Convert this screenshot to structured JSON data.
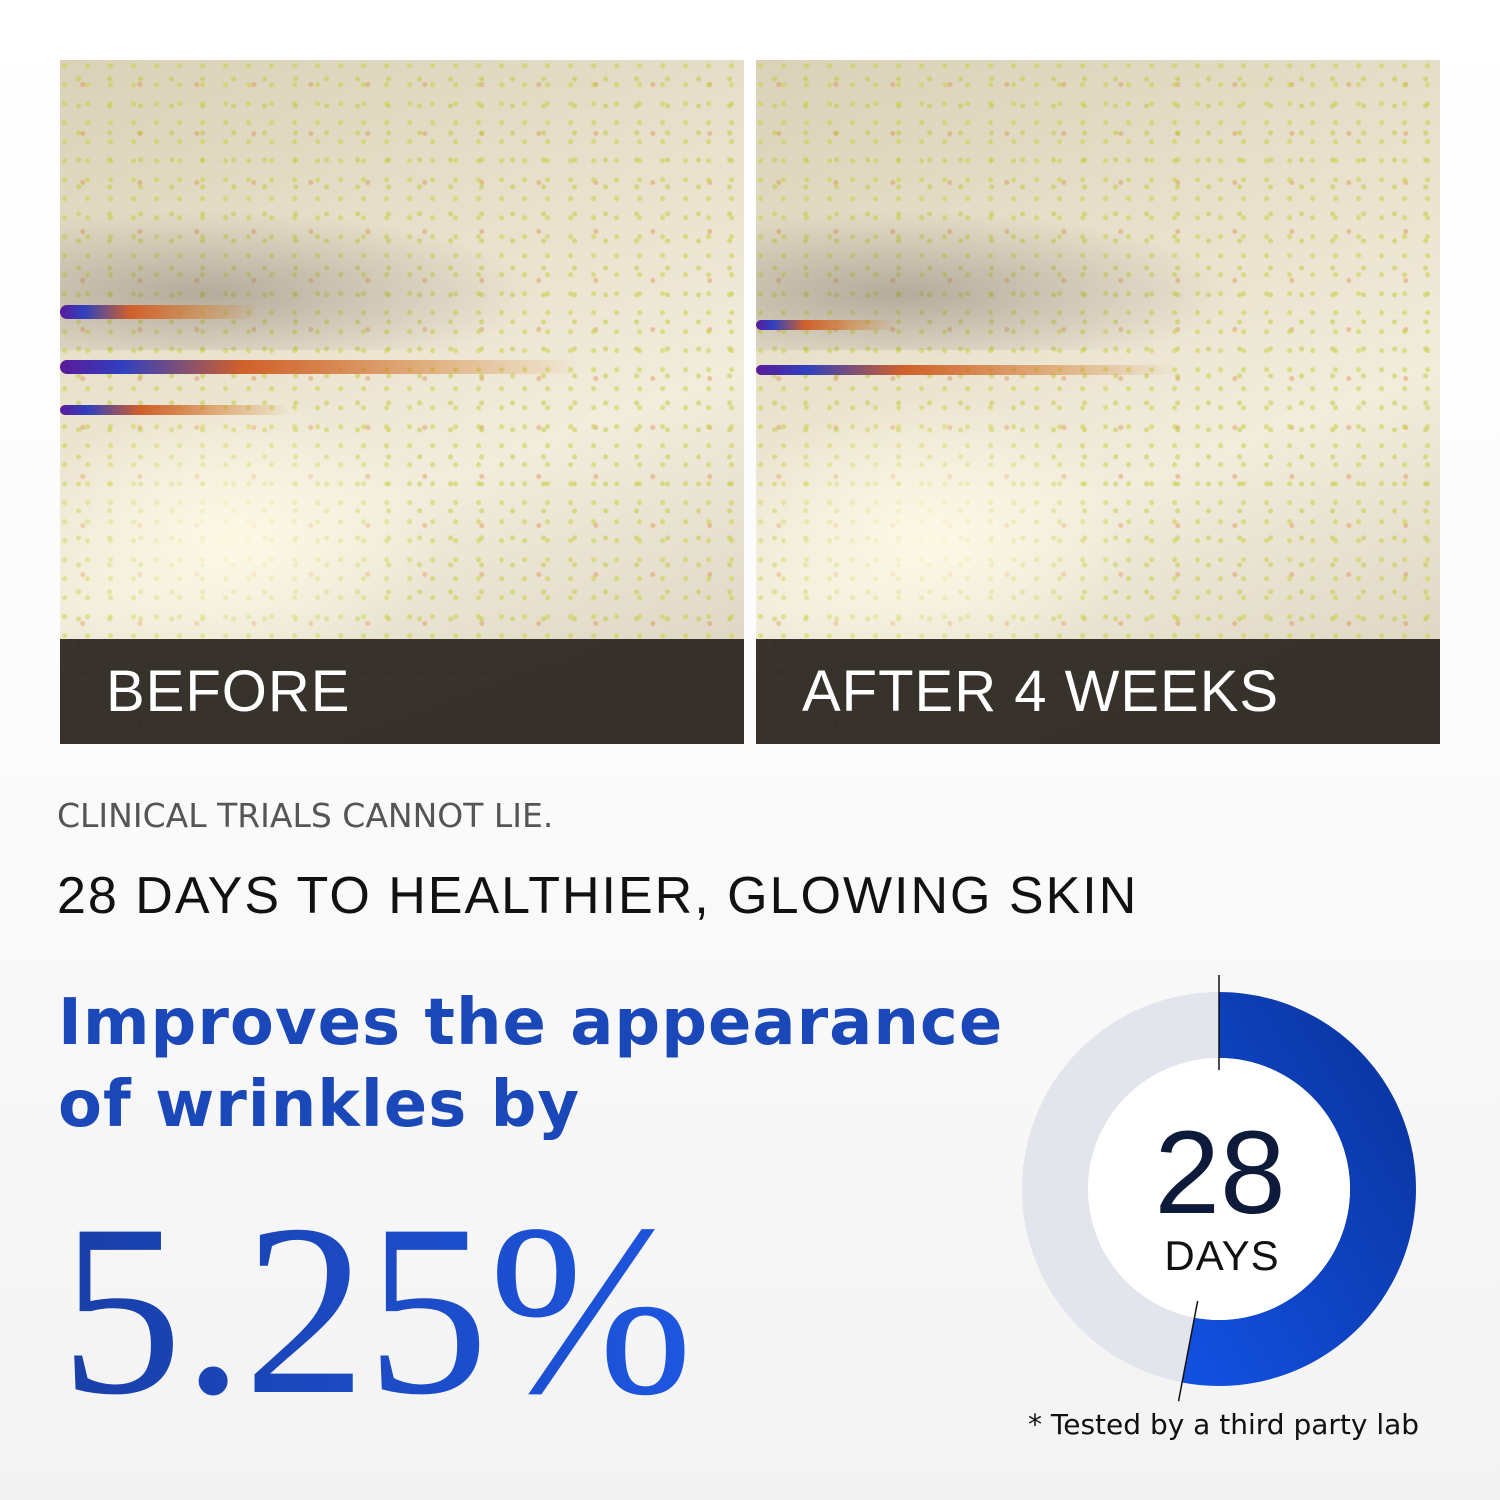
{
  "images": {
    "before": {
      "label": "BEFORE"
    },
    "after": {
      "label": "AFTER 4 WEEKS"
    }
  },
  "kicker": "CLINICAL TRIALS CANNOT LIE.",
  "headline": "28 DAYS TO HEALTHIER, GLOWING SKIN",
  "claim": {
    "line1": "Improves the appearance",
    "line2": "of wrinkles by"
  },
  "percent": "5.25%",
  "donut": {
    "number": "28",
    "unit": "DAYS",
    "filled_fraction": 0.53,
    "fill_color_start": "#0a35a0",
    "fill_color_end": "#1250e0",
    "track_color": "#e3e5ec"
  },
  "footnote": "* Tested by a third party lab"
}
